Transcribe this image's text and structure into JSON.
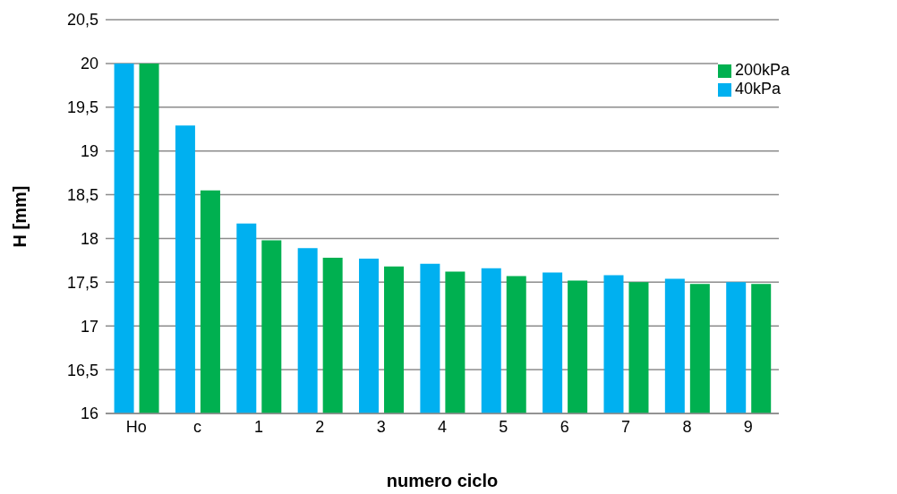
{
  "chart_data": {
    "type": "bar",
    "xlabel": "numero ciclo",
    "ylabel": "H  [mm]",
    "categories": [
      "Ho",
      "c",
      "1",
      "2",
      "3",
      "4",
      "5",
      "6",
      "7",
      "8",
      "9"
    ],
    "series": [
      {
        "name": "40kPa",
        "color": "#00b0f0",
        "values": [
          20,
          19.29,
          18.17,
          17.89,
          17.77,
          17.71,
          17.66,
          17.61,
          17.58,
          17.54,
          17.5
        ]
      },
      {
        "name": "200kPa",
        "color": "#00b050",
        "values": [
          20,
          18.55,
          17.98,
          17.78,
          17.68,
          17.62,
          17.57,
          17.52,
          17.5,
          17.48,
          17.48
        ]
      }
    ],
    "ylim": [
      16,
      20.5
    ],
    "yticks": [
      16,
      {
        "value": 16.5,
        "label": "16,5"
      },
      17,
      {
        "value": 17.5,
        "label": "17,5"
      },
      18,
      {
        "value": 18.5,
        "label": "18,5"
      },
      19,
      {
        "value": 19.5,
        "label": "19,5"
      },
      20,
      {
        "value": 20.5,
        "label": "20,5"
      }
    ],
    "grid": "y",
    "legend": "top right"
  }
}
